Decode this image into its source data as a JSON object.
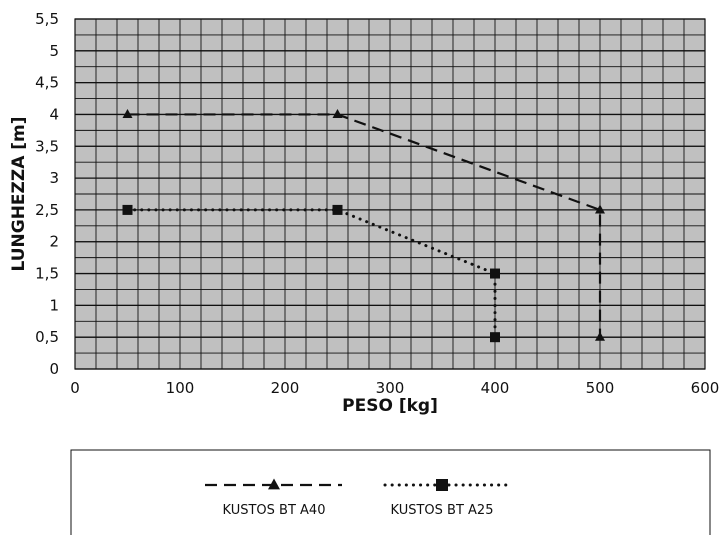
{
  "chart_data": {
    "type": "line",
    "xlabel": "PESO [kg]",
    "ylabel": "LUNGHEZZA [m]",
    "xlim": [
      0,
      600
    ],
    "ylim": [
      0,
      5.5
    ],
    "x_ticks": [
      0,
      100,
      200,
      300,
      400,
      500,
      600
    ],
    "y_ticks": [
      "0",
      "0,5",
      "1",
      "1,5",
      "2",
      "2,5",
      "3",
      "3,5",
      "4",
      "4,5",
      "5",
      "5,5"
    ],
    "grid": true,
    "legend_position": "bottom",
    "series": [
      {
        "name": "KUSTOS BT A40",
        "marker": "triangle",
        "linestyle": "dashed",
        "points": [
          [
            50,
            4
          ],
          [
            250,
            4
          ],
          [
            500,
            2.5
          ],
          [
            500,
            0.5
          ]
        ]
      },
      {
        "name": "KUSTOS BT A25",
        "marker": "square",
        "linestyle": "dotted",
        "points": [
          [
            50,
            2.5
          ],
          [
            250,
            2.5
          ],
          [
            400,
            1.5
          ],
          [
            400,
            0.5
          ]
        ]
      }
    ]
  },
  "colors": {
    "plot_background": "#c0c0c0",
    "grid": "#111111",
    "series": "#111111"
  }
}
